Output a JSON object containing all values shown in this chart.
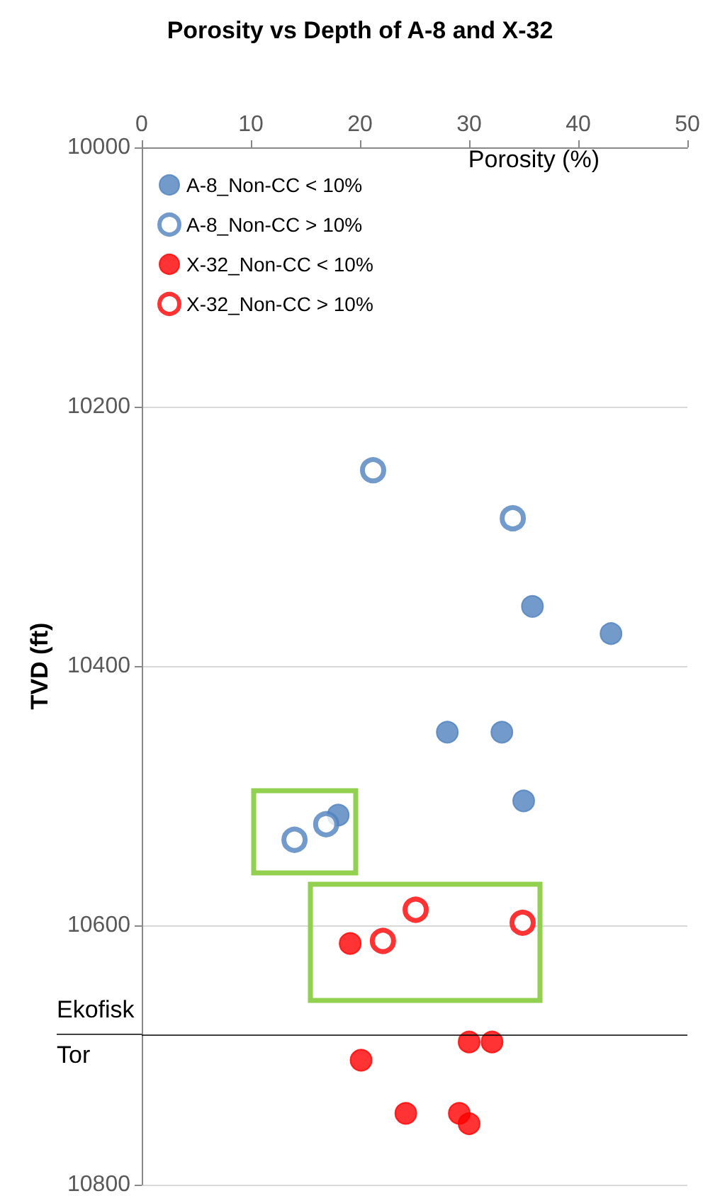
{
  "chart_data": {
    "type": "scatter",
    "title": "Porosity vs Depth of A-8 and X-32",
    "xlabel": "Porosity (%)",
    "ylabel": "TVD (ft)",
    "xlim": [
      0,
      50
    ],
    "xticks": [
      0,
      10,
      20,
      30,
      40,
      50
    ],
    "ylim": [
      10800,
      10000
    ],
    "yticks": [
      10000,
      10200,
      10400,
      10600,
      10800
    ],
    "grid": "y",
    "legend": "top left",
    "marker": "circle",
    "series": [
      {
        "name": "A-8_Non-CC < 10%",
        "color": "#4f81bd",
        "x": [
          35.8,
          43,
          28,
          33,
          35,
          18
        ],
        "values": [
          10354,
          10375,
          10451,
          10451,
          10504,
          10515
        ]
      },
      {
        "name": "A-8_Non-CC > 10%",
        "color": "#4f81bd",
        "colors": [
          "#ffffff",
          "#ffffff",
          "#ffffff",
          "#ffffff"
        ],
        "x": [
          21.2,
          34,
          16.9,
          14
        ],
        "values": [
          10249,
          10286,
          10522,
          10534
        ]
      },
      {
        "name": "X-32_Non-CC < 10%",
        "color": "#ff0000",
        "x": [
          19.1,
          20.1,
          30,
          32.1,
          24.2,
          29.1,
          30
        ],
        "values": [
          10614,
          10704,
          10690,
          10690,
          10745,
          10745,
          10753
        ]
      },
      {
        "name": "X-32_Non-CC > 10%",
        "color": "#ff0000",
        "colors": [
          "#ffffff",
          "#ffffff",
          "#ffffff"
        ],
        "x": [
          25.1,
          22.1,
          34.9
        ],
        "values": [
          10588,
          10612,
          10598
        ]
      }
    ],
    "ref_lines": [
      {
        "axis": "y",
        "value": 10684,
        "color": "#000000"
      }
    ],
    "annotations": [
      "Ekofisk",
      "Tor"
    ]
  }
}
